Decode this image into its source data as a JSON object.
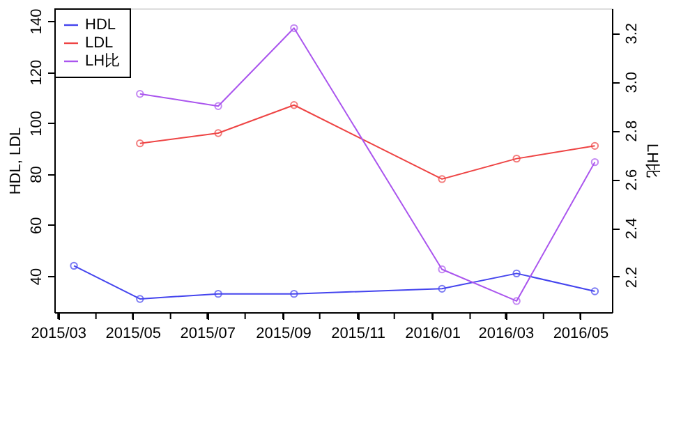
{
  "chart_data": {
    "type": "line",
    "ylabel": "HDL, LDL",
    "y2label": "LH比",
    "x": [
      "2015-03-14",
      "2015-05-07",
      "2015-07-10",
      "2015-09-10",
      "2016-01-09",
      "2016-03-10",
      "2016-05-13"
    ],
    "series": [
      {
        "name": "HDL",
        "color": "#4444ee",
        "values": [
          44,
          31,
          33,
          33,
          35,
          41,
          34
        ]
      },
      {
        "name": "LDL",
        "color": "#ee4444",
        "values": [
          null,
          92,
          96,
          107,
          78,
          86,
          91
        ]
      },
      {
        "name": "LH比",
        "color": "#aa55ee",
        "axis": "y2",
        "values": [
          null,
          2.95,
          2.9,
          3.22,
          2.23,
          2.1,
          2.67
        ]
      }
    ],
    "xlim": [
      "2015-02-26",
      "2016-05-27"
    ],
    "xticks": [
      {
        "value": "2015-03",
        "label": "2015/03"
      },
      {
        "value": "2015-04",
        "label": null
      },
      {
        "value": "2015-05",
        "label": "2015/05"
      },
      {
        "value": "2015-06",
        "label": null
      },
      {
        "value": "2015-07",
        "label": "2015/07"
      },
      {
        "value": "2015-08",
        "label": null
      },
      {
        "value": "2015-09",
        "label": "2015/09"
      },
      {
        "value": "2015-10",
        "label": null
      },
      {
        "value": "2015-11",
        "label": "2015/11"
      },
      {
        "value": "2015-12",
        "label": null
      },
      {
        "value": "2016-01",
        "label": "2016/01"
      },
      {
        "value": "2016-02",
        "label": null
      },
      {
        "value": "2016-03",
        "label": "2016/03"
      },
      {
        "value": "2016-04",
        "label": null
      },
      {
        "value": "2016-05",
        "label": "2016/05"
      }
    ],
    "ylim": [
      25.8,
      144.9
    ],
    "yticks": [
      40,
      60,
      80,
      100,
      120,
      140
    ],
    "y2lim": [
      2.054,
      3.301
    ],
    "y2ticks": [
      2.2,
      2.4,
      2.6,
      2.8,
      {
        "value": 3.0,
        "label": "3.0"
      },
      3.2
    ],
    "marker": "circle",
    "line_style": "solid",
    "grid": false,
    "legend": "top left"
  }
}
